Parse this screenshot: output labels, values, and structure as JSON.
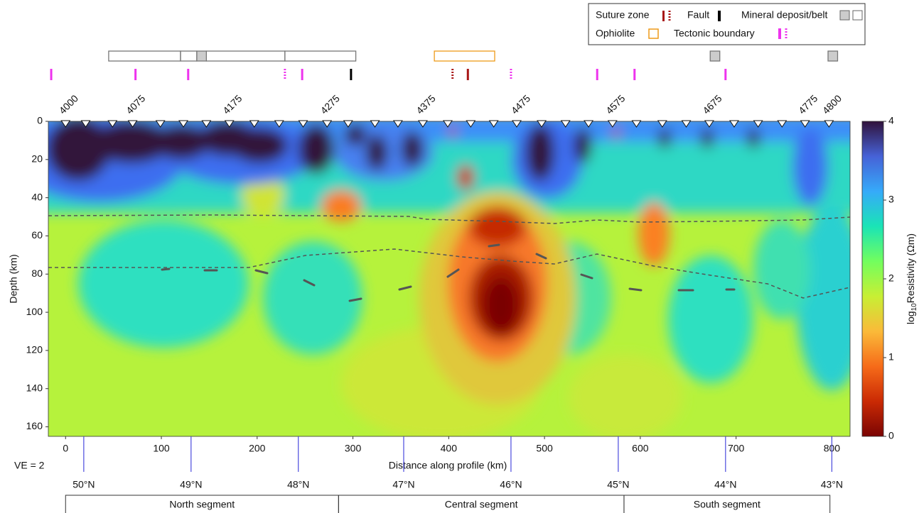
{
  "chart_data": {
    "type": "section",
    "xlabel": "Distance along profile (km)",
    "ylabel": "Depth (km)",
    "annotation": "VE = 2",
    "xlim": [
      -18,
      819
    ],
    "xticks": [
      0,
      100,
      200,
      300,
      400,
      500,
      600,
      700,
      800
    ],
    "ylim": [
      0,
      165
    ],
    "yticks": [
      0,
      20,
      40,
      60,
      80,
      100,
      120,
      140,
      160
    ],
    "colorbar": {
      "label_parts": [
        "log",
        "10",
        "Resistivity (Ωm)"
      ],
      "lim": [
        0,
        4
      ],
      "ticks": [
        0,
        1,
        2,
        3,
        4
      ],
      "colormap": [
        "#7a0403",
        "#ca2a04",
        "#f66b19",
        "#faba39",
        "#c8ef34",
        "#72fe5e",
        "#1ae4b6",
        "#36aaf9",
        "#4662d7",
        "#30123b"
      ]
    },
    "stations": {
      "labels": [
        4000,
        4075,
        4175,
        4275,
        4375,
        4475,
        4575,
        4675,
        4775,
        4800
      ],
      "label_x": [
        0,
        70,
        171,
        273,
        373,
        472,
        571,
        672,
        772,
        797
      ],
      "x": [
        0,
        21,
        49,
        70,
        99,
        123,
        147,
        171,
        197,
        223,
        248,
        273,
        295,
        323,
        347,
        373,
        399,
        423,
        447,
        471,
        497,
        522,
        546,
        571,
        596,
        623,
        648,
        672,
        698,
        723,
        748,
        772,
        797
      ]
    },
    "latitudes": [
      {
        "value": 19,
        "label": "50°N"
      },
      {
        "value": 131,
        "label": "49°N"
      },
      {
        "value": 243,
        "label": "48°N"
      },
      {
        "value": 353,
        "label": "47°N"
      },
      {
        "value": 465,
        "label": "46°N"
      },
      {
        "value": 577,
        "label": "45°N"
      },
      {
        "value": 689,
        "label": "44°N"
      },
      {
        "value": 800,
        "label": "43°N"
      }
    ],
    "segments": [
      {
        "name": "North segment",
        "start": 0,
        "end": 285
      },
      {
        "name": "Central segment",
        "start": 285,
        "end": 583
      },
      {
        "name": "South segment",
        "start": 583,
        "end": 798
      }
    ],
    "features": [
      {
        "name": "Suture zone",
        "color": "#a81515",
        "solid": [
          420
        ],
        "dotted": [
          404
        ]
      },
      {
        "name": "Fault",
        "color": "#000000",
        "solid": [
          298
        ]
      },
      {
        "name": "Mineral deposit/belt",
        "color": "#777777",
        "open": [
          [
            45,
            120
          ],
          [
            120,
            137
          ],
          [
            147,
            229
          ],
          [
            229,
            303
          ]
        ],
        "filled": [
          [
            137,
            147
          ],
          [
            673,
            683
          ],
          [
            796,
            806
          ]
        ]
      },
      {
        "name": "Ophiolite",
        "color": "#ee9a1a",
        "open": [
          [
            385,
            448
          ]
        ]
      },
      {
        "name": "Tectonic boundary",
        "color": "#ee33ee",
        "solid": [
          -15,
          73,
          128,
          247,
          555,
          594,
          689
        ],
        "dotted": [
          229,
          465
        ]
      }
    ]
  }
}
